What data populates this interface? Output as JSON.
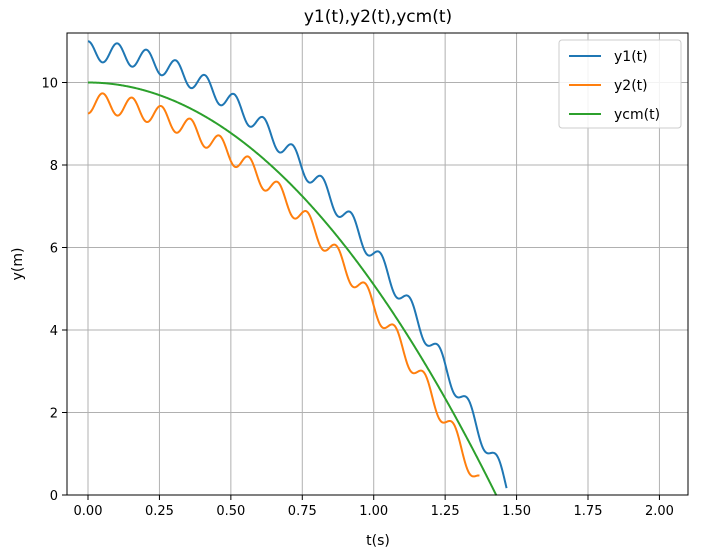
{
  "chart_data": {
    "type": "line",
    "title": "y1(t),y2(t),ycm(t)",
    "xlabel": "t(s)",
    "ylabel": "y(m)",
    "xlim": [
      -0.0735,
      2.1
    ],
    "ylim": [
      0,
      11.2
    ],
    "xticks": [
      0.0,
      0.25,
      0.5,
      0.75,
      1.0,
      1.25,
      1.5,
      1.75,
      2.0
    ],
    "xtick_labels": [
      "0.00",
      "0.25",
      "0.50",
      "0.75",
      "1.00",
      "1.25",
      "1.50",
      "1.75",
      "2.00"
    ],
    "yticks": [
      0,
      2,
      4,
      6,
      8,
      10
    ],
    "ytick_labels": [
      "0",
      "2",
      "4",
      "6",
      "8",
      "10"
    ],
    "grid": true,
    "legend_position": "top-right",
    "series": [
      {
        "name": "y1(t)",
        "color": "#1f77b4",
        "model": "ycm(t) + 0.75 + 0.25*cos(2*pi*t/0.1025)",
        "x_range": [
          0.0,
          1.465
        ]
      },
      {
        "name": "y2(t)",
        "color": "#ff7f0e",
        "model": "ycm(t) - 0.5 - 0.25*cos(2*pi*t/0.1025)",
        "x_range": [
          0.0,
          1.37
        ]
      },
      {
        "name": "ycm(t)",
        "color": "#2ca02c",
        "model": "10 - 4.9*t^2",
        "x_range": [
          0.0,
          1.43
        ]
      }
    ]
  }
}
